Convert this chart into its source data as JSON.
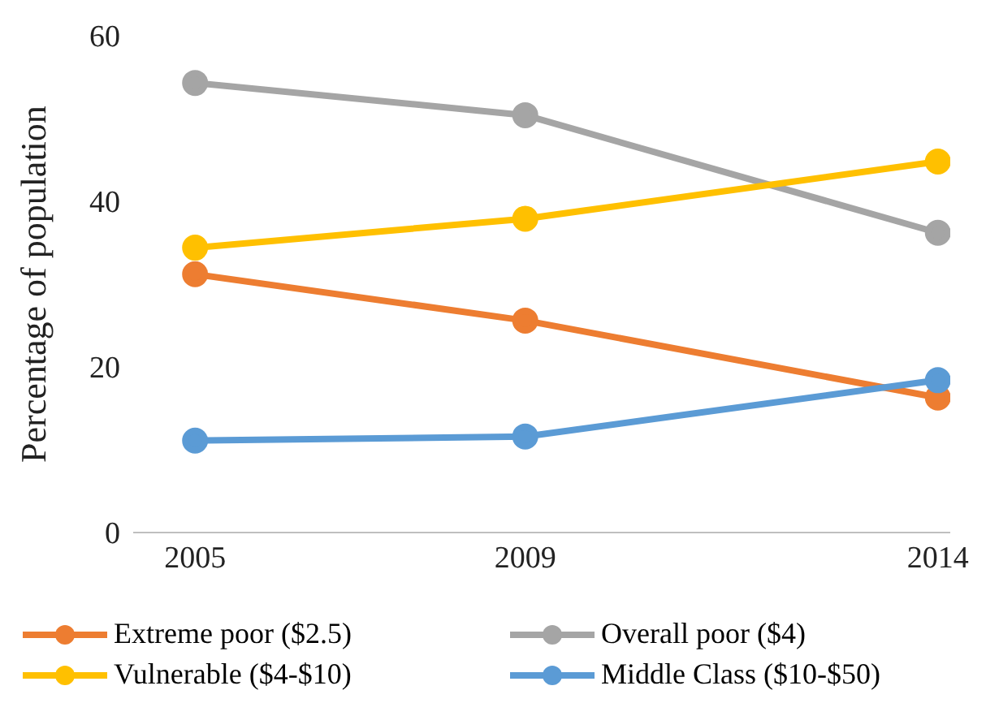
{
  "chart_data": {
    "type": "line",
    "ylabel": "Percentage of population",
    "x": [
      2005,
      2009,
      2014
    ],
    "xlim": [
      2004.25,
      2014.15
    ],
    "xticks": [
      2005,
      2009,
      2014
    ],
    "ylim": [
      0,
      60
    ],
    "yticks": [
      0,
      20,
      40,
      60
    ],
    "grid": false,
    "legend": "bottom",
    "marker": "circle",
    "series": [
      {
        "name": "Extreme poor ($2.5)",
        "color": "#ed7d31",
        "values": [
          31.2,
          25.6,
          16.3
        ]
      },
      {
        "name": "Overall poor ($4)",
        "color": "#a5a5a5",
        "values": [
          54.3,
          50.4,
          36.2
        ]
      },
      {
        "name": "Vulnerable ($4-$10)",
        "color": "#ffc000",
        "values": [
          34.4,
          37.9,
          44.8
        ]
      },
      {
        "name": "Middle Class ($10-$50)",
        "color": "#5b9bd5",
        "values": [
          11.1,
          11.6,
          18.4
        ]
      }
    ]
  }
}
